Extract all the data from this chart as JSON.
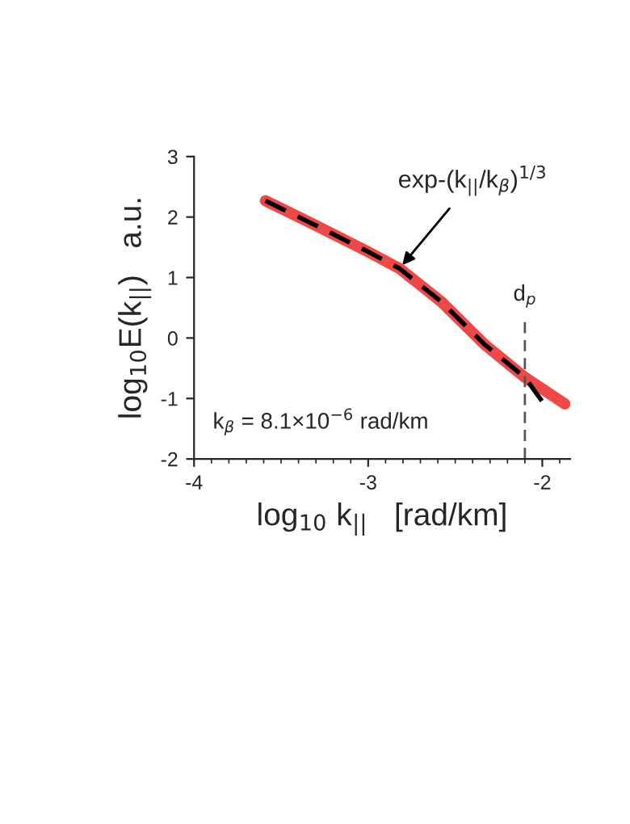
{
  "chart_data": {
    "type": "line",
    "xlabel": "log$_{10}$ k$_{||}$   [rad/km]",
    "ylabel": "log$_{10}$E(k$_{||}$)   a.u.",
    "series": [
      {
        "color": "#f04848",
        "line_style": "solid",
        "x": [
          -3.59,
          -3.32,
          -3.01,
          -2.82,
          -2.58,
          -2.33,
          -2.1,
          -1.87
        ],
        "values": [
          2.27,
          1.89,
          1.44,
          1.15,
          0.6,
          -0.11,
          -0.65,
          -1.09
        ]
      },
      {
        "color": "#000000",
        "line_style": "dashed",
        "x": [
          -3.59,
          -3.32,
          -3.01,
          -2.82,
          -2.58,
          -2.33,
          -2.1,
          -2.0
        ],
        "values": [
          2.27,
          1.89,
          1.44,
          1.15,
          0.6,
          -0.11,
          -0.65,
          -1.05
        ]
      }
    ],
    "xlim": [
      -4,
      -1.84
    ],
    "xticks": [
      -4,
      -3,
      -2
    ],
    "ylim": [
      -2,
      3
    ],
    "yticks": [
      -2,
      -1,
      0,
      1,
      2,
      3
    ],
    "ref_lines": [
      {
        "axis": "x",
        "value": -2.1,
        "label": "d$_{p}$",
        "color": "#555555",
        "line_style": "dashed"
      }
    ],
    "annotations": [
      {
        "text": "exp-(k$_{||}$/k$_{β}$)$^{1/3}$",
        "x": -2.82,
        "y": 1.15
      },
      "k$_{β}$ = 8.1×10$^{−6}$ rad/km"
    ],
    "grid": false
  }
}
